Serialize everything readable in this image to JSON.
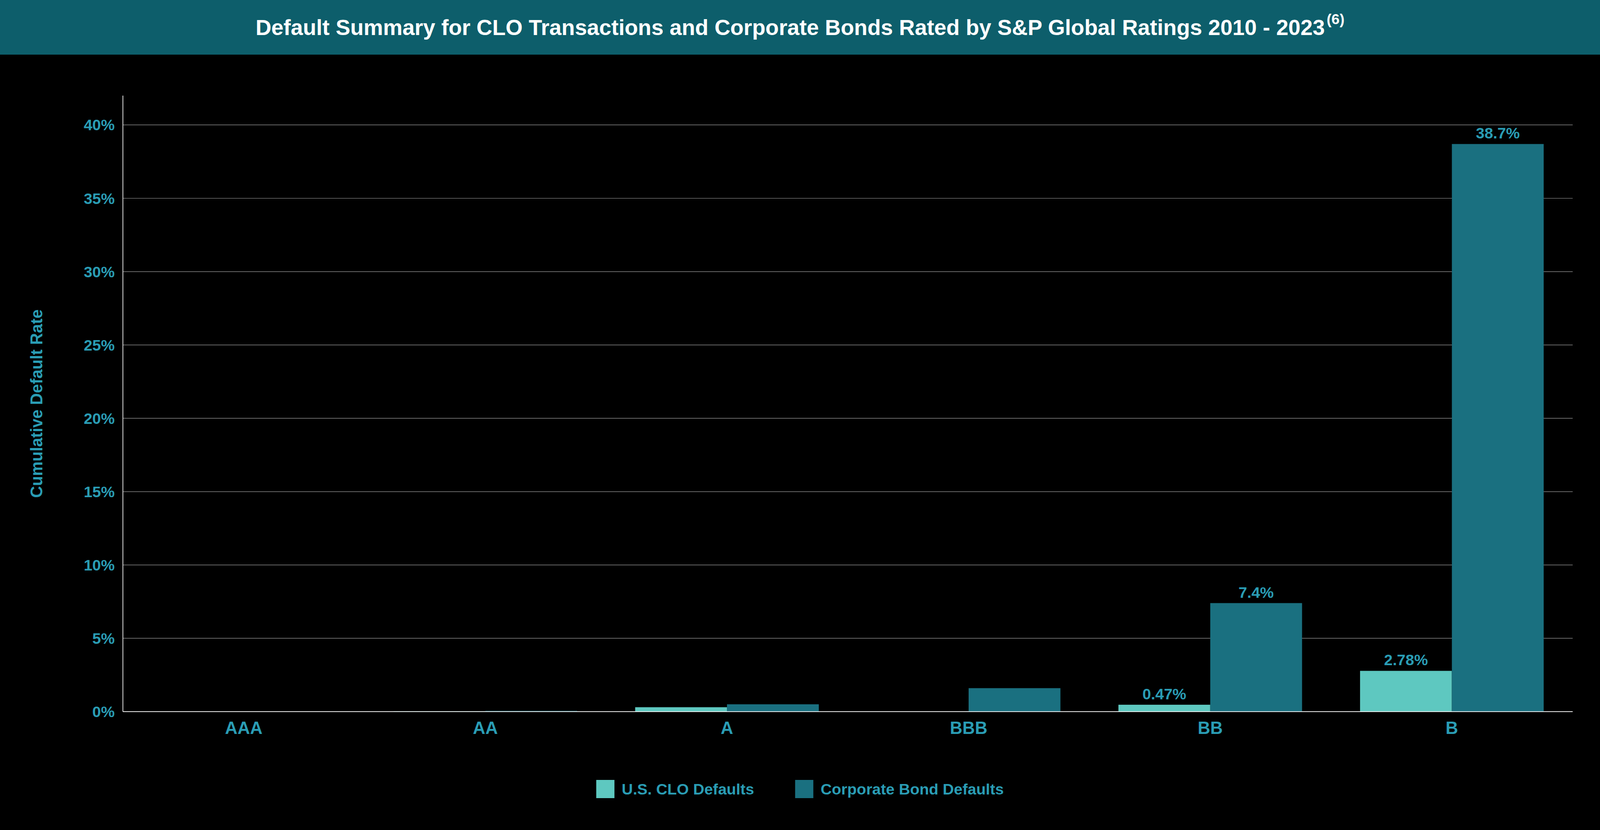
{
  "chart_data": {
    "type": "bar",
    "title": "Default Summary for CLO Transactions and Corporate Bonds Rated by S&P Global Ratings 2010 - 2023",
    "annotations": [
      "(6)"
    ],
    "y_label": "Cumulative Default Rate",
    "categories": [
      "AAA",
      "AA",
      "A",
      "BBB",
      "BB",
      "B"
    ],
    "series": [
      {
        "name": "U.S. CLO Defaults",
        "color": "#5ec8c0",
        "values": [
          0.0,
          0.02,
          0.3,
          0.0,
          0.47,
          2.78
        ],
        "value_labels": [
          null,
          null,
          null,
          null,
          "0.47%",
          "2.78%"
        ]
      },
      {
        "name": "Corporate Bond Defaults",
        "color": "#1a7080",
        "values": [
          0.0,
          0.05,
          0.5,
          1.6,
          7.4,
          38.7
        ],
        "value_labels": [
          null,
          null,
          null,
          null,
          "7.4%",
          "38.7%"
        ]
      }
    ],
    "ylim": [
      0,
      42
    ],
    "yticks": [
      {
        "value": 0,
        "label": "0%"
      },
      {
        "value": 5,
        "label": "5%"
      },
      {
        "value": 10,
        "label": "10%"
      },
      {
        "value": 15,
        "label": "15%"
      },
      {
        "value": 20,
        "label": "20%"
      },
      {
        "value": 25,
        "label": "25%"
      },
      {
        "value": 30,
        "label": "30%"
      },
      {
        "value": 35,
        "label": "35%"
      },
      {
        "value": 40,
        "label": "40%"
      }
    ],
    "grid": true,
    "legend": "bottom",
    "data_labels": true
  }
}
